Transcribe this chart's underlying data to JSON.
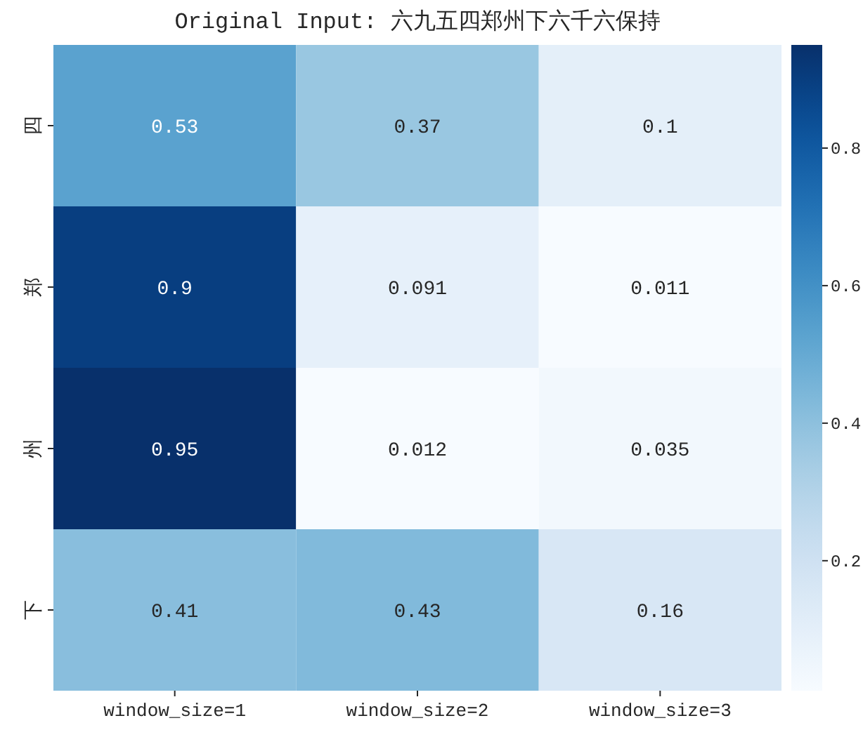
{
  "chart_data": {
    "type": "heatmap",
    "title": "Original Input: 六九五四郑州下六千六保持",
    "categories": [
      "window_size=1",
      "window_size=2",
      "window_size=3"
    ],
    "y_categories": [
      "四",
      "郑",
      "州",
      "下"
    ],
    "cells": [
      [
        0.53,
        0.37,
        0.1
      ],
      [
        0.9,
        0.091,
        0.011
      ],
      [
        0.95,
        0.012,
        0.035
      ],
      [
        0.41,
        0.43,
        0.16
      ]
    ],
    "data_labels": true,
    "clim": [
      0.011,
      0.95
    ],
    "cticks": [
      0.2,
      0.4,
      0.6,
      0.8
    ]
  }
}
